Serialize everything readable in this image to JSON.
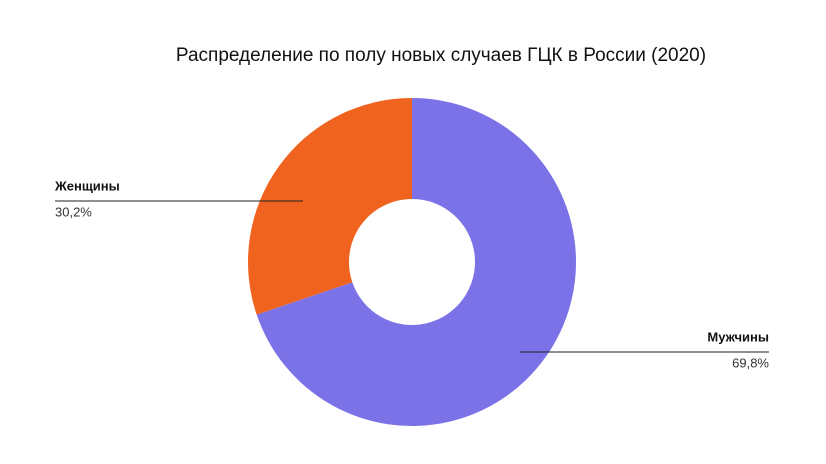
{
  "chart_data": {
    "type": "donut",
    "title": "Распределение по полу новых случаев ГЦК в России (2020)",
    "categories": [
      "Мужчины",
      "Женщины"
    ],
    "values": [
      69.8,
      30.2
    ],
    "value_labels": [
      "69,8%",
      "30,2%"
    ],
    "colors": [
      "#7b72e8",
      "#f0631f"
    ]
  }
}
